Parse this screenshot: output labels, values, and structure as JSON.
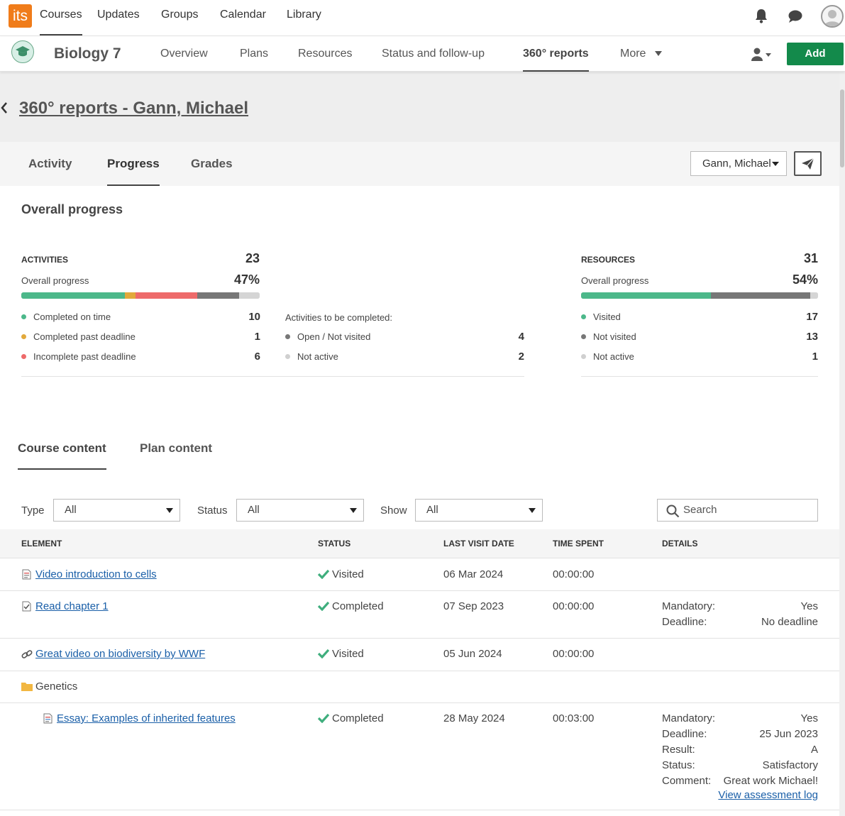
{
  "topnav": {
    "logo_text": "its",
    "items": [
      "Courses",
      "Updates",
      "Groups",
      "Calendar",
      "Library"
    ]
  },
  "course": {
    "title": "Biology 7",
    "tabs": [
      "Overview",
      "Plans",
      "Resources",
      "Status and follow-up",
      "360° reports",
      "More"
    ],
    "add_label": "Add"
  },
  "page": {
    "title": "360° reports - Gann, Michael",
    "subtabs": [
      "Activity",
      "Progress",
      "Grades"
    ],
    "selected_user": "Gann, Michael"
  },
  "overall": {
    "heading": "Overall progress",
    "activities": {
      "label": "ACTIVITIES",
      "total": "23",
      "progress_label": "Overall progress",
      "progress_pct": "47%",
      "segments": [
        {
          "value": 10,
          "color": "#4cb88a"
        },
        {
          "value": 1,
          "color": "#e2a93b"
        },
        {
          "value": 6,
          "color": "#ee6a6a"
        },
        {
          "value": 4,
          "color": "#777777"
        },
        {
          "value": 2,
          "color": "#d5d5d5"
        }
      ],
      "legend": [
        {
          "label": "Completed on time",
          "value": "10",
          "color": "#4cb88a"
        },
        {
          "label": "Completed past deadline",
          "value": "1",
          "color": "#e2a93b"
        },
        {
          "label": "Incomplete past deadline",
          "value": "6",
          "color": "#ee6a6a"
        }
      ],
      "to_complete_label": "Activities to be completed:",
      "to_complete": [
        {
          "label": "Open / Not visited",
          "value": "4",
          "color": "#777777"
        },
        {
          "label": "Not active",
          "value": "2",
          "color": "#d0d0d0"
        }
      ]
    },
    "resources": {
      "label": "RESOURCES",
      "total": "31",
      "progress_label": "Overall progress",
      "progress_pct": "54%",
      "segments": [
        {
          "value": 17,
          "color": "#4cb88a"
        },
        {
          "value": 13,
          "color": "#777777"
        },
        {
          "value": 1,
          "color": "#d5d5d5"
        }
      ],
      "legend": [
        {
          "label": "Visited",
          "value": "17",
          "color": "#4cb88a"
        },
        {
          "label": "Not visited",
          "value": "13",
          "color": "#777777"
        },
        {
          "label": "Not active",
          "value": "1",
          "color": "#d0d0d0"
        }
      ]
    }
  },
  "content_tabs": [
    "Course content",
    "Plan content"
  ],
  "filters": {
    "type_label": "Type",
    "type_value": "All",
    "status_label": "Status",
    "status_value": "All",
    "show_label": "Show",
    "show_value": "All",
    "search_placeholder": "Search"
  },
  "table": {
    "headers": [
      "ELEMENT",
      "STATUS",
      "LAST VISIT DATE",
      "TIME SPENT",
      "DETAILS"
    ],
    "rows": [
      {
        "element": "Video introduction to cells",
        "status": "Visited",
        "date": "06 Mar 2024",
        "time": "00:00:00"
      },
      {
        "element": "Read chapter 1",
        "status": "Completed",
        "date": "07 Sep 2023",
        "time": "00:00:00",
        "details": [
          {
            "k": "Mandatory:",
            "v": "Yes"
          },
          {
            "k": "Deadline:",
            "v": "No deadline"
          }
        ]
      },
      {
        "element": "Great video on biodiversity by WWF",
        "status": "Visited",
        "date": "05 Jun 2024",
        "time": "00:00:00"
      },
      {
        "element": "Genetics"
      },
      {
        "element": "Essay: Examples of inherited features",
        "status": "Completed",
        "date": "28 May 2024",
        "time": "00:03:00",
        "details": [
          {
            "k": "Mandatory:",
            "v": "Yes"
          },
          {
            "k": "Deadline:",
            "v": "25 Jun 2023"
          },
          {
            "k": "Result:",
            "v": "A"
          },
          {
            "k": "Status:",
            "v": "Satisfactory"
          },
          {
            "k": "Comment:",
            "v": "Great work Michael!"
          }
        ],
        "link": "View assessment log"
      }
    ]
  }
}
